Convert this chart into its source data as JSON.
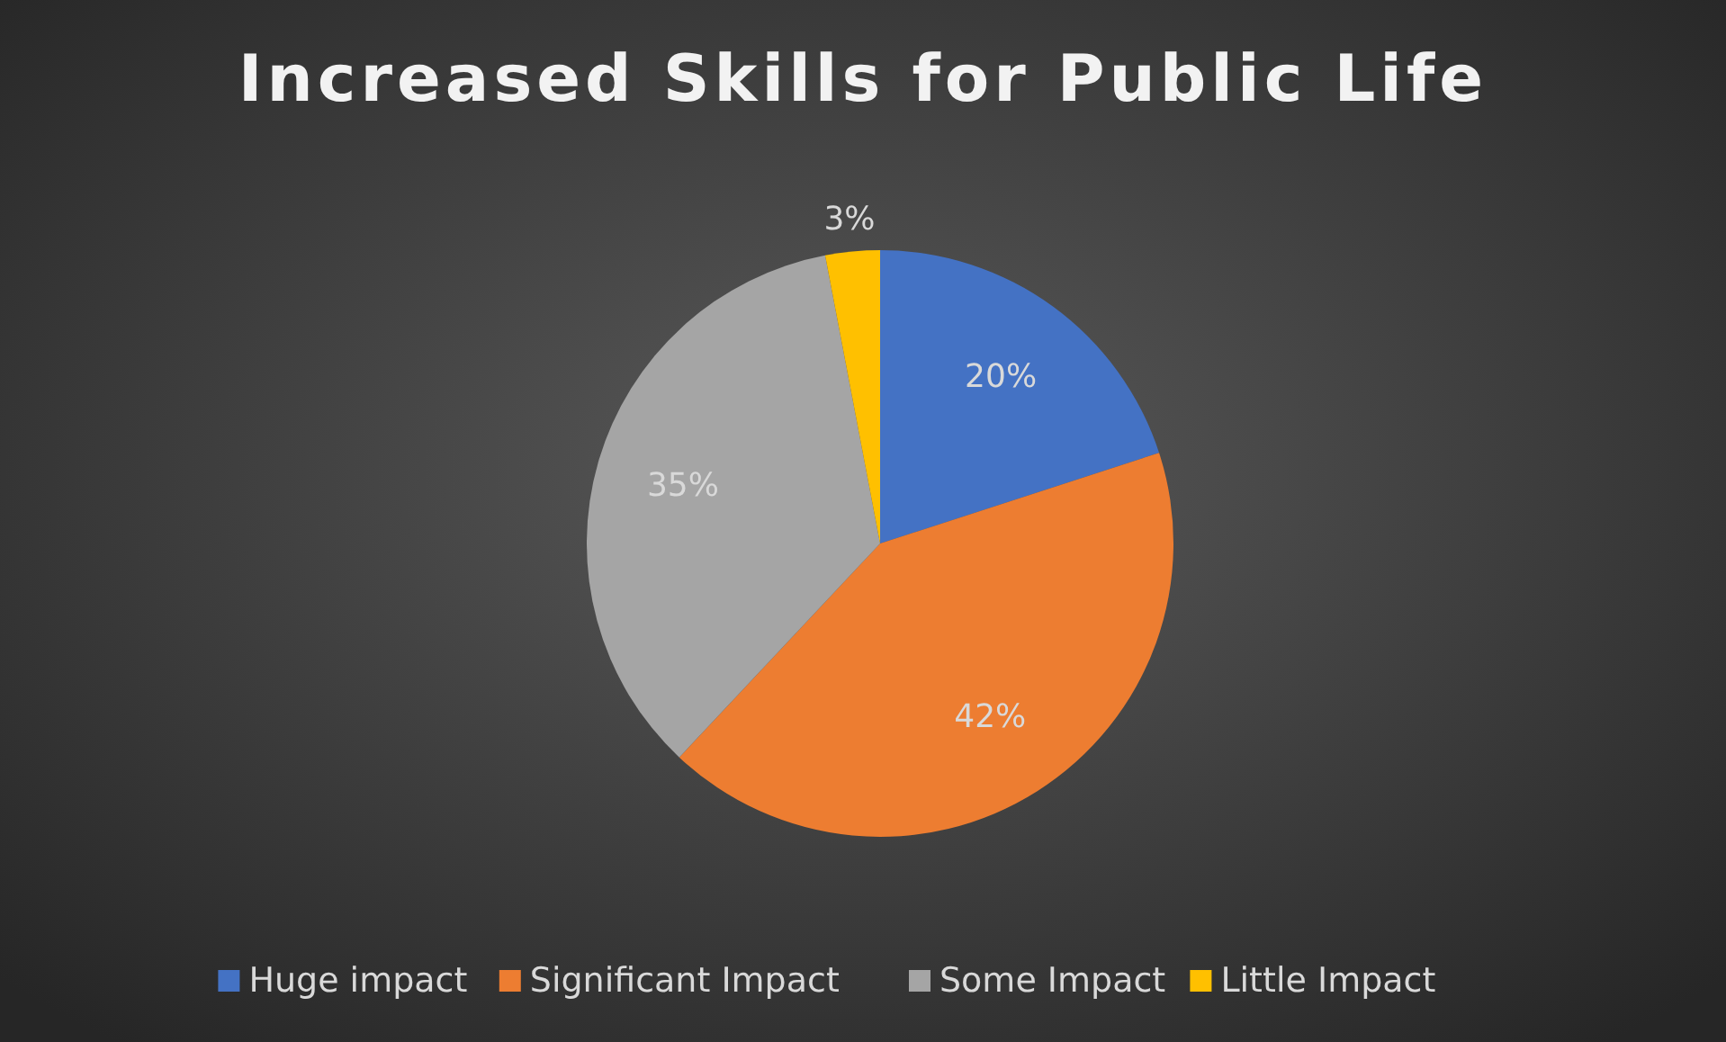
{
  "chart_data": {
    "type": "pie",
    "title": "Increased Skills for Public Life",
    "categories": [
      "Huge impact",
      "Significant Impact",
      "Some Impact",
      "Little Impact"
    ],
    "values": [
      20,
      42,
      35,
      3
    ],
    "colors": [
      "#4472c4",
      "#ed7d31",
      "#a5a5a5",
      "#ffc000"
    ],
    "value_labels": [
      "20%",
      "42%",
      "35%",
      "3%"
    ],
    "legend": "bottom"
  }
}
